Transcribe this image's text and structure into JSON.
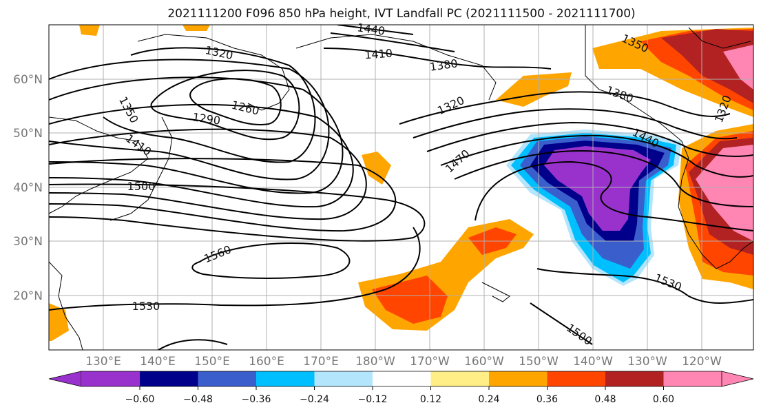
{
  "title": "2021111200 F096 850 hPa height, IVT Landfall PC (2021111500 - 2021111700)",
  "map": {
    "lon_labels": [
      "130°E",
      "140°E",
      "150°E",
      "160°E",
      "170°E",
      "180°W",
      "170°W",
      "160°W",
      "150°W",
      "140°W",
      "130°W",
      "120°W"
    ],
    "lat_labels": [
      "60°N",
      "50°N",
      "40°N",
      "30°N",
      "20°N"
    ],
    "contour_labels": [
      "1440",
      "1410",
      "1320",
      "1380",
      "1350",
      "1260",
      "1290",
      "1410",
      "1320",
      "1380",
      "1350",
      "1440",
      "1320",
      "1470",
      "1500",
      "1560",
      "1530",
      "1530",
      "1500"
    ],
    "colors": {
      "neg_060": "#9932cc",
      "neg_048": "#00008b",
      "neg_036": "#3a5fcd",
      "neg_024": "#00bfff",
      "neg_012": "#b3e5fc",
      "pos_012": "#ffed86",
      "pos_024": "#ffa500",
      "pos_036": "#ff4500",
      "pos_048": "#b22222",
      "pos_060": "#ff85b3"
    }
  },
  "colorbar": {
    "ticks": [
      "−0.60",
      "−0.48",
      "−0.36",
      "−0.24",
      "−0.12",
      "0.12",
      "0.24",
      "0.36",
      "0.48",
      "0.60"
    ]
  }
}
